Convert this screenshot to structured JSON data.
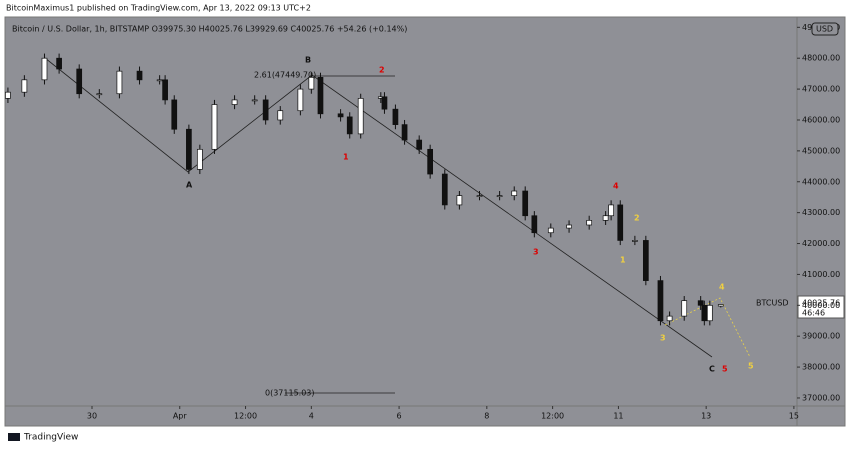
{
  "header": {
    "publisher": "BitcoinMaximus1 published on TradingView.com, Apr 13, 2022 09:13 UTC+2",
    "brand": "TradingView"
  },
  "chart_data": {
    "type": "candlestick",
    "legend": "Bitcoin / U.S. Dollar, 1h, BITSTAMP  O39975.30  H40025.76  L39929.69  C40025.76  +54.26 (+0.14%)",
    "currency": "USD",
    "symbol": "BTCUSD",
    "countdown": "46:46",
    "color": "#111111",
    "x": [
      -46,
      -37,
      -26,
      -18,
      -7,
      4,
      15,
      26,
      37,
      40,
      45,
      53,
      59,
      67,
      78,
      89,
      95,
      103,
      114,
      120,
      125,
      136,
      141,
      147,
      158,
      160,
      166,
      171,
      179,
      185,
      193,
      201,
      212,
      223,
      231,
      237,
      242,
      251,
      261,
      272,
      281,
      284,
      289,
      297,
      303,
      311,
      316,
      324,
      333,
      335,
      338,
      344
    ],
    "open": [
      46700,
      46900,
      47300,
      48000,
      47650,
      46850,
      46850,
      47580,
      47300,
      47300,
      46650,
      45700,
      44400,
      45050,
      46500,
      46650,
      46650,
      46000,
      46300,
      47000,
      47380,
      46200,
      46100,
      45550,
      46700,
      46750,
      46350,
      45850,
      45350,
      45050,
      44250,
      43250,
      43550,
      43550,
      43550,
      43700,
      42900,
      42350,
      42500,
      42600,
      42750,
      42900,
      43250,
      42100,
      42100,
      40800,
      39500,
      39650,
      40150,
      40000,
      39500,
      39975.3
    ],
    "high": [
      47050,
      47450,
      48150,
      48150,
      47800,
      47000,
      47730,
      47730,
      47450,
      47450,
      46800,
      45850,
      45200,
      46650,
      46800,
      46800,
      46800,
      46450,
      47150,
      47530,
      47530,
      46350,
      46250,
      46850,
      46900,
      46900,
      46500,
      46000,
      45500,
      45200,
      44400,
      43700,
      43700,
      43700,
      43850,
      43850,
      43050,
      42650,
      42750,
      42900,
      43050,
      43400,
      43400,
      42250,
      42250,
      40950,
      39800,
      40300,
      40300,
      40150,
      40150,
      40025.76
    ],
    "low": [
      46550,
      46750,
      47150,
      47500,
      46700,
      46700,
      46700,
      47150,
      47150,
      46500,
      45550,
      44250,
      44250,
      44900,
      46350,
      46500,
      45850,
      45850,
      46150,
      46850,
      46050,
      45950,
      45400,
      45400,
      46550,
      46200,
      45700,
      45200,
      44900,
      44100,
      43100,
      43100,
      43400,
      43400,
      43400,
      42750,
      42200,
      42200,
      42350,
      42450,
      42600,
      42750,
      41950,
      41950,
      40650,
      39350,
      39350,
      39500,
      39850,
      39350,
      39350,
      39929.69
    ],
    "close": [
      46900,
      47300,
      48000,
      47650,
      46850,
      46850,
      47580,
      47300,
      47300,
      46650,
      45700,
      44400,
      45050,
      46500,
      46650,
      46650,
      46000,
      46300,
      47000,
      47380,
      46200,
      46100,
      45550,
      46700,
      46750,
      46350,
      45850,
      45350,
      45050,
      44250,
      43250,
      43550,
      43550,
      43550,
      43700,
      42900,
      42350,
      42500,
      42600,
      42750,
      42900,
      43250,
      42100,
      42100,
      40800,
      39500,
      39650,
      40150,
      40000,
      39500,
      40000,
      40025.76
    ],
    "xlim": [
      -47.6,
      385.7
    ],
    "xticks": [
      {
        "value": 0,
        "label": "30"
      },
      {
        "value": 48,
        "label": "Apr"
      },
      {
        "value": 84,
        "label": "12:00"
      },
      {
        "value": 120,
        "label": "4"
      },
      {
        "value": 168,
        "label": "6"
      },
      {
        "value": 216,
        "label": "8"
      },
      {
        "value": 252,
        "label": "12:00"
      },
      {
        "value": 288,
        "label": "11"
      },
      {
        "value": 336,
        "label": "13"
      },
      {
        "value": 384,
        "label": "15"
      }
    ],
    "ylim": [
      36740,
      49334
    ],
    "yticks": [
      {
        "value": 37000,
        "label": "37000.00"
      },
      {
        "value": 38000,
        "label": "38000.00"
      },
      {
        "value": 39000,
        "label": "39000.00"
      },
      {
        "value": 40000,
        "label": "40000.00"
      },
      {
        "value": 41000,
        "label": "41000.00"
      },
      {
        "value": 42000,
        "label": "42000.00"
      },
      {
        "value": 43000,
        "label": "43000.00"
      },
      {
        "value": 44000,
        "label": "44000.00"
      },
      {
        "value": 45000,
        "label": "45000.00"
      },
      {
        "value": 46000,
        "label": "46000.00"
      },
      {
        "value": 47000,
        "label": "47000.00"
      },
      {
        "value": 48000,
        "label": "48000.00"
      },
      {
        "value": 49000,
        "label": "49000.00"
      }
    ],
    "annotations": {
      "fib_top": "2.61(47449.70)",
      "fib_bottom": "0(37115.03)",
      "black": [
        "A",
        "B",
        "C"
      ],
      "red": [
        "1",
        "2",
        "3",
        "4",
        "5"
      ],
      "yellow": [
        "1",
        "2",
        "3",
        "4",
        "5"
      ]
    }
  }
}
